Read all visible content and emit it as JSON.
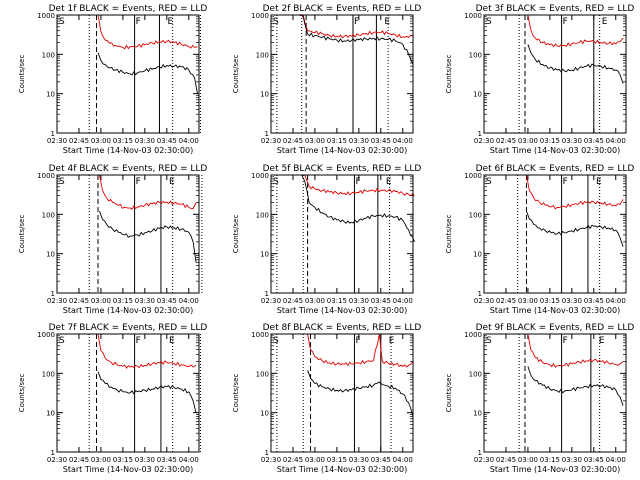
{
  "colors": {
    "events": "#000000",
    "lld": "#e00000",
    "axes": "#000000",
    "background": "#ffffff"
  },
  "common": {
    "ylabel": "Counts/sec",
    "xlabel": "Start Time (14-Nov-03 02:30:00)",
    "x_ticks": [
      "02:30",
      "02:45",
      "03:00",
      "03:15",
      "03:30",
      "03:45",
      "04:00"
    ],
    "y_ticks": [
      "1",
      "10",
      "100",
      "1000"
    ],
    "marker_labels": [
      "S",
      "F",
      "E"
    ],
    "ylim": [
      1,
      1000
    ],
    "yscale": "log"
  },
  "chart_data": [
    {
      "type": "line",
      "title": "Det 1f BLACK = Events, RED = LLD",
      "x": [
        "02:58",
        "03:00",
        "03:03",
        "03:06",
        "03:10",
        "03:15",
        "03:20",
        "03:25",
        "03:30",
        "03:35",
        "03:40",
        "03:45",
        "03:50",
        "03:55",
        "04:00",
        "04:04",
        "04:06"
      ],
      "series": [
        {
          "name": "LLD",
          "color": "red",
          "values": [
            1000,
            380,
            230,
            190,
            170,
            150,
            155,
            160,
            175,
            195,
            210,
            215,
            200,
            180,
            160,
            150,
            155
          ]
        },
        {
          "name": "Events",
          "color": "black",
          "values": [
            110,
            70,
            55,
            45,
            40,
            35,
            32,
            34,
            38,
            42,
            48,
            52,
            50,
            48,
            40,
            25,
            10
          ]
        }
      ],
      "vlines": [
        {
          "time": "02:52",
          "style": "dotted"
        },
        {
          "time": "02:57",
          "style": "dashed"
        },
        {
          "time": "03:23",
          "style": "solid"
        },
        {
          "time": "03:40",
          "style": "solid"
        },
        {
          "time": "03:49",
          "style": "dotted"
        },
        {
          "time": "04:08",
          "style": "dotted"
        }
      ]
    },
    {
      "type": "line",
      "title": "Det 2f BLACK = Events, RED = LLD",
      "x": [
        "02:49",
        "02:52",
        "02:55",
        "03:00",
        "03:05",
        "03:10",
        "03:15",
        "03:20",
        "03:25",
        "03:30",
        "03:35",
        "03:40",
        "03:45",
        "03:50",
        "03:55",
        "04:00",
        "04:04",
        "04:07"
      ],
      "series": [
        {
          "name": "LLD",
          "color": "red",
          "values": [
            1000,
            1000,
            400,
            360,
            330,
            300,
            290,
            285,
            290,
            310,
            340,
            360,
            360,
            340,
            310,
            280,
            270,
            290
          ]
        },
        {
          "name": "Events",
          "color": "black",
          "values": [
            1000,
            900,
            330,
            300,
            270,
            245,
            230,
            220,
            225,
            235,
            245,
            255,
            250,
            240,
            220,
            180,
            100,
            55
          ]
        }
      ],
      "vlines": [
        {
          "time": "02:34",
          "style": "dotted"
        },
        {
          "time": "02:51",
          "style": "dotted"
        },
        {
          "time": "02:54",
          "style": "dashed"
        },
        {
          "time": "03:26",
          "style": "solid"
        },
        {
          "time": "03:42",
          "style": "solid"
        },
        {
          "time": "03:50",
          "style": "dotted"
        }
      ]
    },
    {
      "type": "line",
      "title": "Det 3f BLACK = Events, RED = LLD",
      "x": [
        "03:00",
        "03:02",
        "03:05",
        "03:10",
        "03:15",
        "03:20",
        "03:25",
        "03:30",
        "03:35",
        "03:40",
        "03:45",
        "03:50",
        "03:55",
        "04:00",
        "04:03",
        "04:05"
      ],
      "series": [
        {
          "name": "LLD",
          "color": "red",
          "values": [
            1000,
            420,
            260,
            200,
            175,
            165,
            170,
            185,
            200,
            215,
            215,
            200,
            190,
            185,
            210,
            260
          ]
        },
        {
          "name": "Events",
          "color": "black",
          "values": [
            180,
            110,
            75,
            55,
            45,
            40,
            38,
            40,
            45,
            50,
            52,
            50,
            45,
            40,
            30,
            18
          ]
        }
      ],
      "vlines": [
        {
          "time": "02:54",
          "style": "dotted"
        },
        {
          "time": "02:58",
          "style": "dashed"
        },
        {
          "time": "03:23",
          "style": "solid"
        },
        {
          "time": "03:45",
          "style": "solid"
        },
        {
          "time": "03:49",
          "style": "dotted"
        },
        {
          "time": "04:07",
          "style": "dotted"
        }
      ]
    },
    {
      "type": "line",
      "title": "Det 4f BLACK = Events, RED = LLD",
      "x": [
        "02:59",
        "03:01",
        "03:04",
        "03:08",
        "03:12",
        "03:16",
        "03:20",
        "03:25",
        "03:30",
        "03:35",
        "03:40",
        "03:45",
        "03:50",
        "03:55",
        "04:00",
        "04:03",
        "04:05"
      ],
      "series": [
        {
          "name": "LLD",
          "color": "red",
          "values": [
            1000,
            420,
            260,
            200,
            170,
            150,
            145,
            155,
            170,
            185,
            200,
            205,
            195,
            180,
            150,
            140,
            200
          ]
        },
        {
          "name": "Events",
          "color": "black",
          "values": [
            120,
            75,
            55,
            42,
            35,
            30,
            28,
            30,
            34,
            38,
            44,
            48,
            46,
            42,
            35,
            20,
            6
          ]
        }
      ],
      "vlines": [
        {
          "time": "02:52",
          "style": "dotted"
        },
        {
          "time": "02:58",
          "style": "dashed"
        },
        {
          "time": "03:23",
          "style": "solid"
        },
        {
          "time": "03:41",
          "style": "solid"
        },
        {
          "time": "03:49",
          "style": "dotted"
        },
        {
          "time": "04:09",
          "style": "dotted"
        }
      ]
    },
    {
      "type": "line",
      "title": "Det 5f BLACK = Events, RED = LLD",
      "x": [
        "02:51",
        "02:53",
        "02:56",
        "03:00",
        "03:05",
        "03:10",
        "03:15",
        "03:20",
        "03:25",
        "03:30",
        "03:35",
        "03:40",
        "03:45",
        "03:50",
        "03:55",
        "04:00",
        "04:04",
        "04:08"
      ],
      "series": [
        {
          "name": "LLD",
          "color": "red",
          "values": [
            1000,
            1000,
            520,
            440,
            400,
            370,
            350,
            340,
            345,
            360,
            390,
            410,
            410,
            400,
            380,
            340,
            320,
            300
          ]
        },
        {
          "name": "Events",
          "color": "black",
          "values": [
            1000,
            700,
            200,
            150,
            110,
            85,
            72,
            65,
            62,
            70,
            80,
            90,
            95,
            92,
            85,
            70,
            40,
            20
          ]
        }
      ],
      "vlines": [
        {
          "time": "02:34",
          "style": "dotted"
        },
        {
          "time": "02:52",
          "style": "dotted"
        },
        {
          "time": "02:55",
          "style": "dashed"
        },
        {
          "time": "03:27",
          "style": "solid"
        },
        {
          "time": "03:43",
          "style": "solid"
        },
        {
          "time": "03:51",
          "style": "dotted"
        }
      ]
    },
    {
      "type": "line",
      "title": "Det 6f BLACK = Events, RED = LLD",
      "x": [
        "02:59",
        "03:01",
        "03:04",
        "03:08",
        "03:12",
        "03:16",
        "03:20",
        "03:25",
        "03:30",
        "03:35",
        "03:40",
        "03:45",
        "03:50",
        "03:55",
        "04:00",
        "04:03",
        "04:05"
      ],
      "series": [
        {
          "name": "LLD",
          "color": "red",
          "values": [
            1000,
            400,
            260,
            200,
            170,
            155,
            150,
            160,
            175,
            190,
            200,
            205,
            195,
            180,
            165,
            180,
            240
          ]
        },
        {
          "name": "Events",
          "color": "black",
          "values": [
            120,
            75,
            55,
            45,
            38,
            34,
            32,
            34,
            38,
            42,
            46,
            50,
            48,
            45,
            40,
            25,
            15
          ]
        }
      ],
      "vlines": [
        {
          "time": "02:53",
          "style": "dotted"
        },
        {
          "time": "02:59",
          "style": "dashed"
        },
        {
          "time": "03:23",
          "style": "solid"
        },
        {
          "time": "03:41",
          "style": "solid"
        },
        {
          "time": "03:49",
          "style": "dotted"
        },
        {
          "time": "04:07",
          "style": "dotted"
        }
      ]
    },
    {
      "type": "line",
      "title": "Det 7f BLACK = Events, RED = LLD",
      "x": [
        "02:58",
        "03:00",
        "03:03",
        "03:07",
        "03:11",
        "03:15",
        "03:20",
        "03:25",
        "03:30",
        "03:35",
        "03:40",
        "03:45",
        "03:50",
        "03:55",
        "04:00",
        "04:03",
        "04:05"
      ],
      "series": [
        {
          "name": "LLD",
          "color": "red",
          "values": [
            1000,
            380,
            240,
            190,
            165,
            150,
            145,
            150,
            160,
            175,
            185,
            190,
            180,
            165,
            150,
            145,
            160
          ]
        },
        {
          "name": "Events",
          "color": "black",
          "values": [
            110,
            70,
            55,
            45,
            38,
            34,
            32,
            34,
            37,
            40,
            44,
            46,
            44,
            40,
            34,
            20,
            10
          ]
        }
      ],
      "vlines": [
        {
          "time": "02:52",
          "style": "dotted"
        },
        {
          "time": "02:57",
          "style": "dashed"
        },
        {
          "time": "03:23",
          "style": "solid"
        },
        {
          "time": "03:41",
          "style": "solid"
        },
        {
          "time": "03:49",
          "style": "dotted"
        },
        {
          "time": "04:08",
          "style": "dotted"
        }
      ]
    },
    {
      "type": "line",
      "title": "Det 8f BLACK = Events, RED = LLD",
      "x": [
        "02:55",
        "02:57",
        "03:00",
        "03:05",
        "03:10",
        "03:15",
        "03:20",
        "03:25",
        "03:30",
        "03:35",
        "03:40",
        "03:44",
        "03:46",
        "03:50",
        "03:55",
        "04:00",
        "04:04",
        "04:07"
      ],
      "series": [
        {
          "name": "LLD",
          "color": "red",
          "values": [
            1000,
            400,
            260,
            210,
            185,
            175,
            170,
            175,
            185,
            200,
            210,
            1000,
            200,
            180,
            170,
            150,
            160,
            200
          ]
        },
        {
          "name": "Events",
          "color": "black",
          "values": [
            120,
            75,
            55,
            45,
            40,
            37,
            36,
            38,
            42,
            46,
            50,
            60,
            52,
            48,
            42,
            30,
            18,
            8
          ]
        }
      ],
      "vlines": [
        {
          "time": "02:34",
          "style": "dotted"
        },
        {
          "time": "02:52",
          "style": "dotted"
        },
        {
          "time": "02:57",
          "style": "dashed"
        },
        {
          "time": "03:27",
          "style": "solid"
        },
        {
          "time": "03:45",
          "style": "solid"
        },
        {
          "time": "03:52",
          "style": "dotted"
        }
      ]
    },
    {
      "type": "line",
      "title": "Det 9f BLACK = Events, RED = LLD",
      "x": [
        "03:00",
        "03:02",
        "03:05",
        "03:10",
        "03:15",
        "03:20",
        "03:25",
        "03:30",
        "03:35",
        "03:40",
        "03:45",
        "03:50",
        "03:55",
        "04:00",
        "04:03",
        "04:05"
      ],
      "series": [
        {
          "name": "LLD",
          "color": "red",
          "values": [
            1000,
            400,
            250,
            190,
            165,
            155,
            160,
            175,
            195,
            210,
            215,
            200,
            185,
            170,
            175,
            200
          ]
        },
        {
          "name": "Events",
          "color": "black",
          "values": [
            150,
            90,
            65,
            50,
            40,
            36,
            35,
            38,
            42,
            46,
            50,
            48,
            44,
            38,
            25,
            15
          ]
        }
      ],
      "vlines": [
        {
          "time": "02:54",
          "style": "dotted"
        },
        {
          "time": "02:58",
          "style": "dashed"
        },
        {
          "time": "03:23",
          "style": "solid"
        },
        {
          "time": "03:43",
          "style": "solid"
        },
        {
          "time": "03:49",
          "style": "dotted"
        },
        {
          "time": "04:07",
          "style": "dotted"
        }
      ]
    }
  ]
}
